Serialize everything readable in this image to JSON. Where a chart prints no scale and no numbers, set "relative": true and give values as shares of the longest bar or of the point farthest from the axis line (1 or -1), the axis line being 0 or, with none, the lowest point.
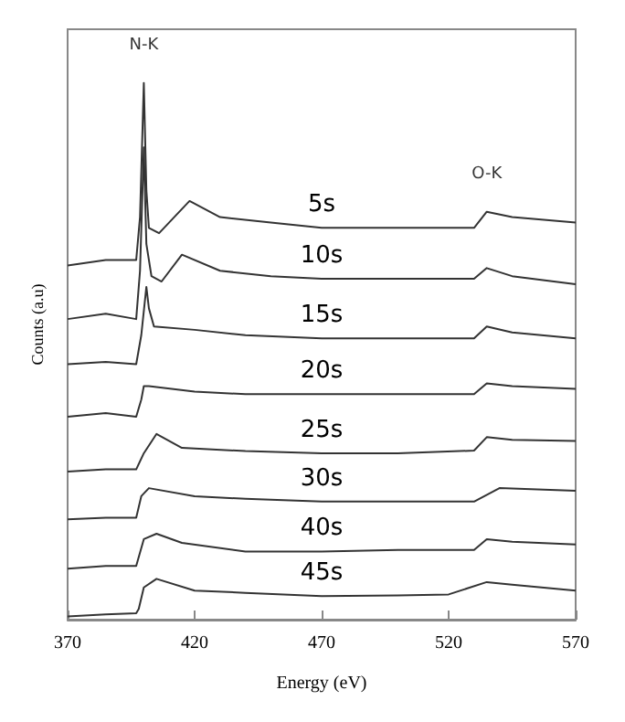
{
  "chart_data": {
    "type": "line",
    "relative": true,
    "xlabel": "Energy (eV)",
    "ylabel": "Counts (a.u)",
    "xlim": [
      370,
      570
    ],
    "xticks": [
      370,
      420,
      470,
      520,
      570
    ],
    "legend": false,
    "grid": false,
    "line_style": "solid",
    "annotations": [
      {
        "text": "N-K",
        "x": 400,
        "y": 1.0
      },
      {
        "text": "O-K",
        "x": 535,
        "y": 0.76
      }
    ],
    "series": [
      {
        "name": "5s",
        "color": "#333333",
        "x": [
          370,
          385,
          397,
          398.5,
          400,
          401,
          402,
          406,
          410,
          418,
          430,
          450,
          470,
          500,
          530,
          535,
          545,
          570
        ],
        "values": [
          0.66,
          0.67,
          0.67,
          0.75,
          1.0,
          0.8,
          0.73,
          0.72,
          0.74,
          0.78,
          0.75,
          0.74,
          0.73,
          0.73,
          0.73,
          0.76,
          0.75,
          0.74
        ]
      },
      {
        "name": "10s",
        "color": "#333333",
        "x": [
          370,
          385,
          397,
          398.5,
          400,
          401,
          403,
          407,
          415,
          430,
          450,
          470,
          500,
          530,
          535,
          545,
          570
        ],
        "values": [
          0.56,
          0.57,
          0.56,
          0.65,
          0.88,
          0.7,
          0.64,
          0.63,
          0.68,
          0.65,
          0.64,
          0.635,
          0.635,
          0.635,
          0.655,
          0.64,
          0.625
        ]
      },
      {
        "name": "15s",
        "color": "#333333",
        "x": [
          370,
          385,
          397,
          399,
          401,
          402,
          404,
          420,
          440,
          470,
          500,
          530,
          535,
          545,
          570
        ],
        "values": [
          0.476,
          0.48,
          0.476,
          0.53,
          0.62,
          0.58,
          0.546,
          0.54,
          0.53,
          0.524,
          0.524,
          0.524,
          0.546,
          0.535,
          0.524
        ]
      },
      {
        "name": "20s",
        "color": "#333333",
        "x": [
          370,
          385,
          397,
          399,
          400,
          402,
          420,
          440,
          470,
          500,
          530,
          535,
          545,
          570
        ],
        "values": [
          0.378,
          0.385,
          0.378,
          0.41,
          0.435,
          0.435,
          0.425,
          0.42,
          0.42,
          0.42,
          0.42,
          0.44,
          0.435,
          0.43
        ]
      },
      {
        "name": "25s",
        "color": "#333333",
        "x": [
          370,
          385,
          397,
          400,
          405,
          415,
          440,
          470,
          500,
          530,
          535,
          545,
          570
        ],
        "values": [
          0.276,
          0.28,
          0.28,
          0.31,
          0.346,
          0.32,
          0.314,
          0.31,
          0.31,
          0.315,
          0.34,
          0.335,
          0.333
        ]
      },
      {
        "name": "30s",
        "color": "#333333",
        "x": [
          370,
          385,
          397,
          399,
          402,
          420,
          440,
          470,
          500,
          530,
          540,
          570
        ],
        "values": [
          0.187,
          0.19,
          0.19,
          0.23,
          0.245,
          0.23,
          0.225,
          0.22,
          0.22,
          0.22,
          0.245,
          0.24
        ]
      },
      {
        "name": "40s",
        "color": "#333333",
        "x": [
          370,
          385,
          397,
          400,
          405,
          415,
          440,
          470,
          500,
          530,
          535,
          545,
          570
        ],
        "values": [
          0.095,
          0.1,
          0.1,
          0.15,
          0.16,
          0.143,
          0.127,
          0.127,
          0.13,
          0.13,
          0.15,
          0.145,
          0.14
        ]
      },
      {
        "name": "45s",
        "color": "#333333",
        "x": [
          370,
          385,
          397,
          398,
          400,
          405,
          420,
          440,
          470,
          500,
          520,
          535,
          545,
          570
        ],
        "values": [
          0.006,
          0.01,
          0.012,
          0.02,
          0.06,
          0.076,
          0.054,
          0.05,
          0.044,
          0.045,
          0.047,
          0.07,
          0.065,
          0.054
        ]
      }
    ]
  }
}
